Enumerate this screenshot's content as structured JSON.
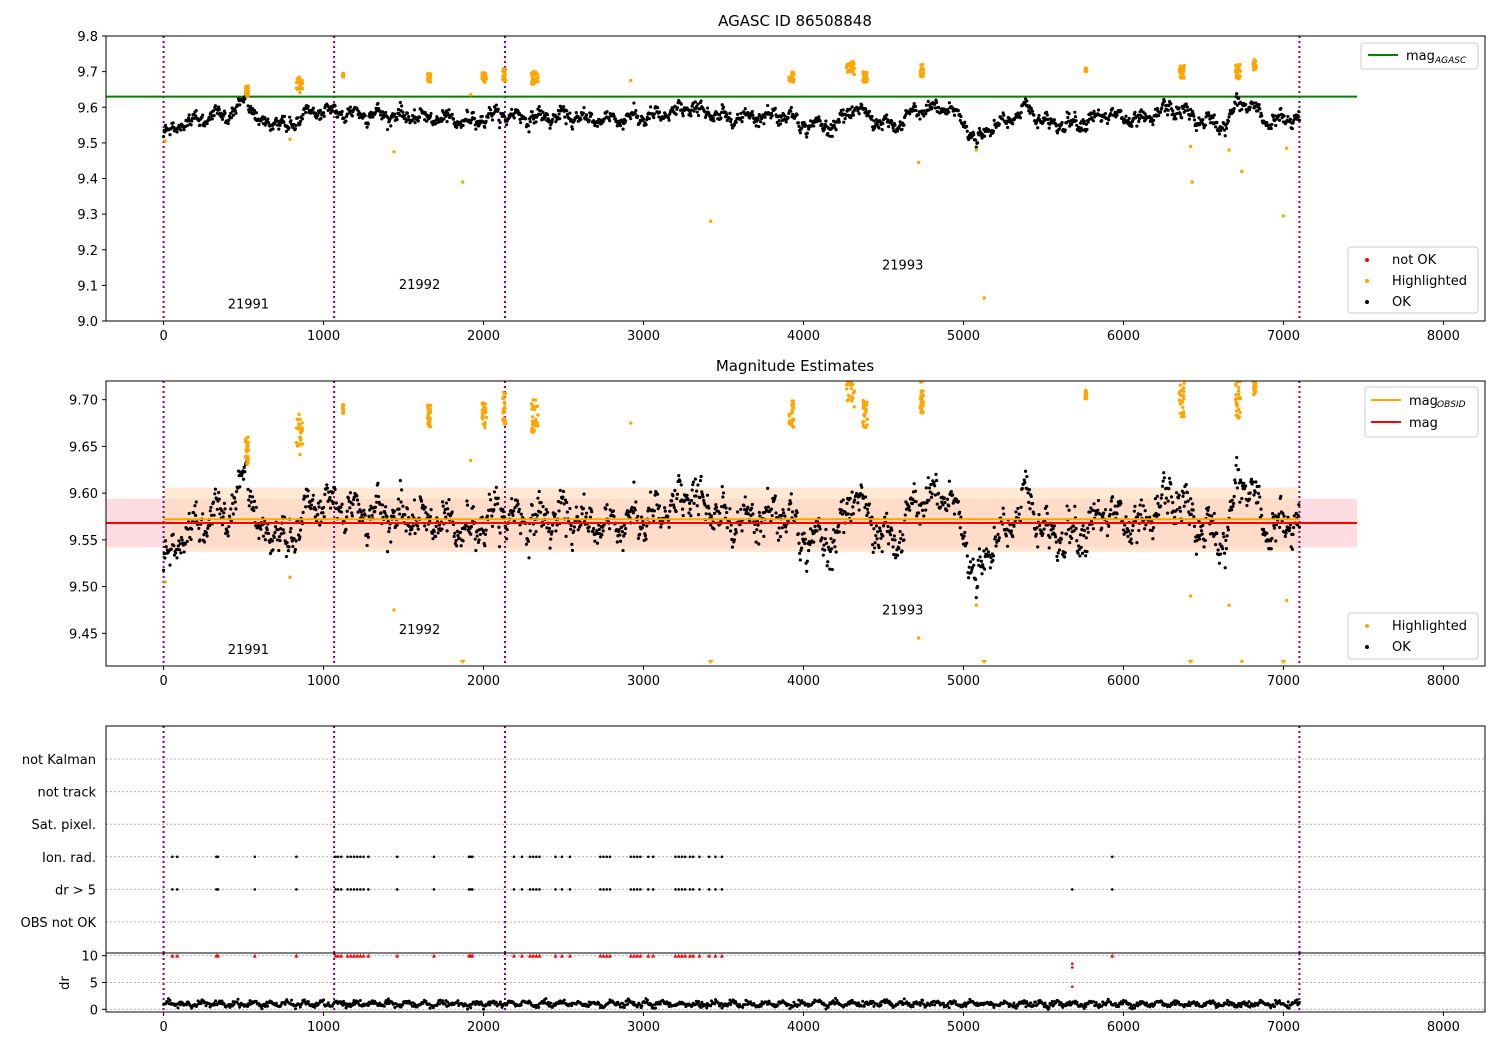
{
  "figure": {
    "colors": {
      "ok": "#000000",
      "highlighted": "#ffa500",
      "not_ok": "#ff0000",
      "agasc_line": "#008000",
      "obsid_line": "#ffa500",
      "mag_line": "#ff0000",
      "obs_boundary": "#800080",
      "mag_band": "#ffc0cb",
      "obsid_band": "#ffdab9"
    },
    "obs_boundaries": [
      0,
      1066,
      2134,
      7100
    ]
  },
  "chart_data": [
    {
      "type": "scatter",
      "title": "AGASC ID 86508848",
      "xlim": [
        -360,
        8260
      ],
      "ylim": [
        9.0,
        9.8
      ],
      "xticks": [
        "0",
        "1000",
        "2000",
        "3000",
        "4000",
        "5000",
        "6000",
        "7000",
        "8000"
      ],
      "yticks": [
        "9.0",
        "9.1",
        "9.2",
        "9.3",
        "9.4",
        "9.5",
        "9.6",
        "9.7",
        "9.8"
      ],
      "mag_agasc": 9.63,
      "obsid_labels": [
        {
          "text": "21991",
          "x": 530,
          "y": 9.035
        },
        {
          "text": "21992",
          "x": 1600,
          "y": 9.09
        },
        {
          "text": "21993",
          "x": 4620,
          "y": 9.145
        }
      ],
      "ok_trend": [
        [
          0,
          9.52
        ],
        [
          60,
          9.54
        ],
        [
          150,
          9.56
        ],
        [
          250,
          9.57
        ],
        [
          350,
          9.58
        ],
        [
          450,
          9.585
        ],
        [
          520,
          9.63
        ],
        [
          600,
          9.55
        ],
        [
          700,
          9.56
        ],
        [
          780,
          9.54
        ],
        [
          860,
          9.58
        ],
        [
          1000,
          9.59
        ],
        [
          1100,
          9.585
        ],
        [
          1300,
          9.58
        ],
        [
          1500,
          9.575
        ],
        [
          1700,
          9.57
        ],
        [
          1900,
          9.56
        ],
        [
          2100,
          9.58
        ],
        [
          2300,
          9.57
        ],
        [
          2500,
          9.575
        ],
        [
          2700,
          9.565
        ],
        [
          2900,
          9.57
        ],
        [
          3100,
          9.575
        ],
        [
          3300,
          9.6
        ],
        [
          3500,
          9.57
        ],
        [
          3700,
          9.575
        ],
        [
          3900,
          9.58
        ],
        [
          4000,
          9.55
        ],
        [
          4200,
          9.55
        ],
        [
          4300,
          9.595
        ],
        [
          4400,
          9.58
        ],
        [
          4500,
          9.55
        ],
        [
          4600,
          9.55
        ],
        [
          4700,
          9.59
        ],
        [
          4900,
          9.6
        ],
        [
          5000,
          9.56
        ],
        [
          5080,
          9.5
        ],
        [
          5150,
          9.54
        ],
        [
          5300,
          9.57
        ],
        [
          5400,
          9.6
        ],
        [
          5500,
          9.555
        ],
        [
          5700,
          9.555
        ],
        [
          5900,
          9.58
        ],
        [
          6100,
          9.56
        ],
        [
          6300,
          9.6
        ],
        [
          6500,
          9.56
        ],
        [
          6650,
          9.55
        ],
        [
          6720,
          9.62
        ],
        [
          6800,
          9.6
        ],
        [
          6900,
          9.56
        ],
        [
          7000,
          9.565
        ],
        [
          7100,
          9.57
        ]
      ],
      "highlighted_clusters": [
        {
          "x": [
            510,
            530
          ],
          "y": [
            9.63,
            9.66
          ]
        },
        {
          "x": [
            830,
            870
          ],
          "y": [
            9.64,
            9.685
          ]
        },
        {
          "x": [
            1120,
            1125
          ],
          "y": [
            9.685,
            9.695
          ]
        },
        {
          "x": [
            1650,
            1670
          ],
          "y": [
            9.67,
            9.695
          ]
        },
        {
          "x": [
            1990,
            2020
          ],
          "y": [
            9.67,
            9.7
          ]
        },
        {
          "x": [
            2120,
            2140
          ],
          "y": [
            9.67,
            9.71
          ]
        },
        {
          "x": [
            2300,
            2340
          ],
          "y": [
            9.665,
            9.7
          ]
        },
        {
          "x": [
            3910,
            3940
          ],
          "y": [
            9.67,
            9.7
          ]
        },
        {
          "x": [
            4270,
            4320
          ],
          "y": [
            9.69,
            9.73
          ]
        },
        {
          "x": [
            4370,
            4400
          ],
          "y": [
            9.67,
            9.7
          ]
        },
        {
          "x": [
            4730,
            4750
          ],
          "y": [
            9.685,
            9.72
          ]
        },
        {
          "x": [
            5760,
            5770
          ],
          "y": [
            9.7,
            9.71
          ]
        },
        {
          "x": [
            6350,
            6380
          ],
          "y": [
            9.68,
            9.72
          ]
        },
        {
          "x": [
            6700,
            6730
          ],
          "y": [
            9.68,
            9.72
          ]
        },
        {
          "x": [
            6810,
            6830
          ],
          "y": [
            9.705,
            9.735
          ]
        }
      ],
      "highlighted_points": [
        [
          10,
          9.505
        ],
        [
          1440,
          9.475
        ],
        [
          1870,
          9.39
        ],
        [
          1920,
          9.635
        ],
        [
          2920,
          9.675
        ],
        [
          3420,
          9.28
        ],
        [
          4720,
          9.445
        ],
        [
          5080,
          9.48
        ],
        [
          5130,
          9.065
        ],
        [
          6420,
          9.49
        ],
        [
          6430,
          9.39
        ],
        [
          6660,
          9.48
        ],
        [
          6740,
          9.42
        ],
        [
          7000,
          9.295
        ],
        [
          7020,
          9.485
        ],
        [
          790,
          9.51
        ]
      ],
      "legend_lines": [
        {
          "label": "mag",
          "sub": "AGASC"
        }
      ],
      "legend_points": [
        "not OK",
        "Highlighted",
        "OK"
      ]
    },
    {
      "type": "scatter",
      "title": "Magnitude Estimates",
      "xlim": [
        -360,
        8260
      ],
      "ylim": [
        9.415,
        9.72
      ],
      "xticks": [
        "0",
        "1000",
        "2000",
        "3000",
        "4000",
        "5000",
        "6000",
        "7000",
        "8000"
      ],
      "yticks": [
        "9.45",
        "9.50",
        "9.55",
        "9.60",
        "9.65",
        "9.70"
      ],
      "ytick_values": [
        9.45,
        9.5,
        9.55,
        9.6,
        9.65,
        9.7
      ],
      "mag": 9.568,
      "mag_band": [
        9.542,
        9.594
      ],
      "mag_obsid": 9.572,
      "obsid_band": [
        9.537,
        9.606
      ],
      "obsid_labels": [
        {
          "text": "21991",
          "x": 530,
          "y": 9.428
        },
        {
          "text": "21992",
          "x": 1600,
          "y": 9.449
        },
        {
          "text": "21993",
          "x": 4620,
          "y": 9.47
        }
      ],
      "legend_lines": [
        {
          "label": "mag",
          "sub": "OBSID"
        },
        {
          "label": "mag",
          "sub": ""
        }
      ],
      "legend_points": [
        "Highlighted",
        "OK"
      ],
      "clipped_highlighted_x": [
        1870,
        3420,
        5130,
        6420,
        7000
      ]
    },
    {
      "type": "scatter",
      "title": "",
      "xlim": [
        -360,
        8260
      ],
      "xticks": [
        "0",
        "1000",
        "2000",
        "3000",
        "4000",
        "5000",
        "6000",
        "7000",
        "8000"
      ],
      "flag_rows": [
        "not Kalman",
        "not track",
        "Sat. pixel.",
        "Ion. rad.",
        "dr > 5",
        "OBS not OK"
      ],
      "flag_points": {
        "Ion. rad.": [
          55,
          85,
          330,
          340,
          570,
          830,
          1075,
          1090,
          1110,
          1150,
          1170,
          1190,
          1210,
          1230,
          1250,
          1280,
          1460,
          1690,
          1910,
          1920,
          1930,
          2190,
          2240,
          2290,
          2310,
          2330,
          2350,
          2450,
          2490,
          2540,
          2730,
          2750,
          2770,
          2790,
          2920,
          2940,
          2960,
          2980,
          3030,
          3060,
          3200,
          3220,
          3240,
          3260,
          3290,
          3310,
          3350,
          3410,
          3450,
          3490,
          5930
        ],
        "dr > 5": [
          55,
          85,
          330,
          340,
          570,
          830,
          1075,
          1090,
          1110,
          1150,
          1170,
          1190,
          1210,
          1230,
          1250,
          1280,
          1460,
          1690,
          1910,
          1920,
          1930,
          2190,
          2240,
          2290,
          2310,
          2330,
          2350,
          2450,
          2490,
          2540,
          2730,
          2750,
          2770,
          2790,
          2920,
          2940,
          2960,
          2980,
          3030,
          3060,
          3200,
          3220,
          3240,
          3260,
          3290,
          3310,
          3350,
          3410,
          3450,
          3490,
          5680,
          5930
        ]
      },
      "dr_label": "dr",
      "dr_yticks": [
        "0",
        "5",
        "10"
      ],
      "dr_ylim": [
        -0.5,
        10.5
      ],
      "dr_high_x": [
        55,
        85,
        330,
        340,
        570,
        830,
        1075,
        1090,
        1110,
        1150,
        1170,
        1190,
        1210,
        1230,
        1250,
        1280,
        1460,
        1690,
        1910,
        1920,
        1930,
        2190,
        2240,
        2290,
        2310,
        2330,
        2350,
        2450,
        2490,
        2540,
        2730,
        2750,
        2770,
        2790,
        2920,
        2940,
        2960,
        2980,
        3030,
        3060,
        3200,
        3220,
        3240,
        3260,
        3290,
        3310,
        3350,
        3410,
        3450,
        3490,
        5930
      ],
      "dr_mid_points": [
        [
          5680,
          8.5
        ],
        [
          5680,
          7.8
        ],
        [
          5680,
          4.2
        ]
      ],
      "dr_baseline": 1.0
    }
  ]
}
